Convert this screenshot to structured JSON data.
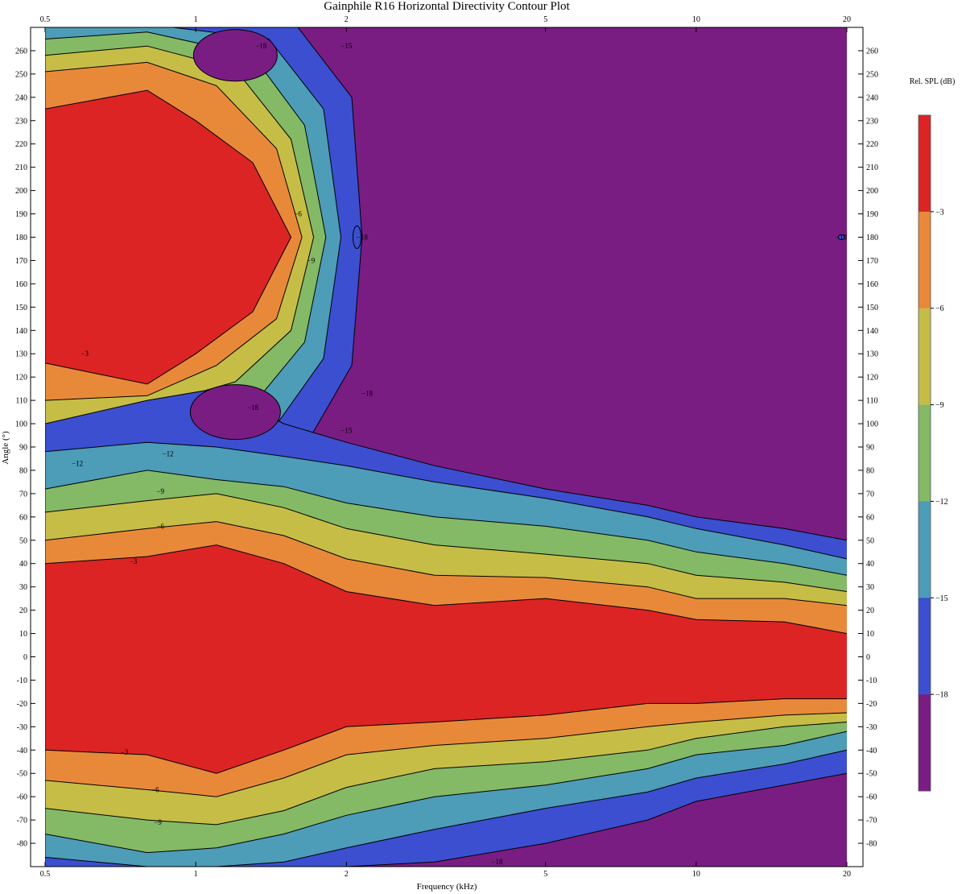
{
  "chart_data": {
    "type": "heatmap",
    "subtype": "contour",
    "title": "Gainphile R16 Horizontal Directivity Contour Plot",
    "xlabel": "Frequency (kHz)",
    "ylabel": "Angle (°)",
    "x_scale": "log",
    "xlim": [
      0.5,
      20
    ],
    "ylim": [
      -90,
      270
    ],
    "x_ticks": [
      "0.5",
      "1",
      "2",
      "5",
      "10",
      "20"
    ],
    "y_ticks": [
      -80,
      -70,
      -60,
      -50,
      -40,
      -30,
      -20,
      -10,
      0,
      10,
      20,
      30,
      40,
      50,
      60,
      70,
      80,
      90,
      100,
      110,
      120,
      130,
      140,
      150,
      160,
      170,
      180,
      190,
      200,
      210,
      220,
      230,
      240,
      250,
      260
    ],
    "colorbar": {
      "title": "Rel. SPL (dB)",
      "levels": [
        "-3",
        "-6",
        "-9",
        "-12",
        "-15",
        "-18"
      ],
      "bands": [
        {
          "range": "> -3",
          "color": "#dc2424"
        },
        {
          "range": "-6 to -3",
          "color": "#e8893a"
        },
        {
          "range": "-9 to -6",
          "color": "#c6bd47"
        },
        {
          "range": "-12 to -9",
          "color": "#84b966"
        },
        {
          "range": "-15 to -12",
          "color": "#4d9cb8"
        },
        {
          "range": "-18 to -15",
          "color": "#3b4fd0"
        },
        {
          "range": "< -18",
          "color": "#7a1d82"
        }
      ]
    },
    "lobes": [
      {
        "name": "front",
        "center_angle": 0,
        "boundaries_upper": [
          {
            "level": -3,
            "f": [
              0.5,
              0.8,
              1.1,
              1.5,
              2.0,
              3.0,
              5.0,
              8.0,
              10,
              15,
              20
            ],
            "a": [
              40,
              43,
              48,
              40,
              28,
              22,
              25,
              20,
              16,
              15,
              10
            ]
          },
          {
            "level": -6,
            "f": [
              0.5,
              0.8,
              1.1,
              1.5,
              2.0,
              3.0,
              5.0,
              8.0,
              10,
              15,
              20
            ],
            "a": [
              50,
              55,
              58,
              52,
              42,
              35,
              34,
              30,
              25,
              25,
              22
            ]
          },
          {
            "level": -9,
            "f": [
              0.5,
              0.8,
              1.1,
              1.5,
              2.0,
              3.0,
              5.0,
              8.0,
              10,
              15,
              20
            ],
            "a": [
              62,
              67,
              70,
              64,
              55,
              48,
              44,
              40,
              35,
              32,
              28
            ]
          },
          {
            "level": -12,
            "f": [
              0.5,
              0.8,
              1.1,
              1.5,
              2.0,
              3.0,
              5.0,
              8.0,
              10,
              15,
              20
            ],
            "a": [
              72,
              80,
              76,
              73,
              66,
              60,
              56,
              50,
              45,
              40,
              35
            ]
          },
          {
            "level": -15,
            "f": [
              0.5,
              0.8,
              1.1,
              1.5,
              2.0,
              3.0,
              5.0,
              8.0,
              10,
              15,
              20
            ],
            "a": [
              88,
              92,
              90,
              86,
              82,
              75,
              68,
              60,
              55,
              48,
              42
            ]
          },
          {
            "level": -18,
            "f": [
              0.5,
              0.8,
              1.1,
              1.5,
              2.0,
              3.0,
              5.0,
              8.0,
              10,
              15,
              20
            ],
            "a": [
              100,
              110,
              115,
              100,
              92,
              82,
              72,
              65,
              60,
              55,
              50
            ]
          }
        ],
        "boundaries_lower": [
          {
            "level": -3,
            "f": [
              0.5,
              0.8,
              1.1,
              1.5,
              2.0,
              3.0,
              5.0,
              8.0,
              10,
              15,
              20
            ],
            "a": [
              -40,
              -42,
              -50,
              -40,
              -30,
              -28,
              -25,
              -20,
              -20,
              -18,
              -18
            ]
          },
          {
            "level": -6,
            "f": [
              0.5,
              0.8,
              1.1,
              1.5,
              2.0,
              3.0,
              5.0,
              8.0,
              10,
              15,
              20
            ],
            "a": [
              -53,
              -57,
              -60,
              -52,
              -42,
              -38,
              -35,
              -30,
              -28,
              -25,
              -24
            ]
          },
          {
            "level": -9,
            "f": [
              0.5,
              0.8,
              1.1,
              1.5,
              2.0,
              3.0,
              5.0,
              8.0,
              10,
              15,
              20
            ],
            "a": [
              -65,
              -70,
              -72,
              -66,
              -56,
              -48,
              -45,
              -40,
              -35,
              -30,
              -28
            ]
          },
          {
            "level": -12,
            "f": [
              0.5,
              0.8,
              1.1,
              1.5,
              2.0,
              3.0,
              5.0,
              8.0,
              10,
              15,
              20
            ],
            "a": [
              -76,
              -84,
              -82,
              -76,
              -68,
              -60,
              -55,
              -48,
              -42,
              -38,
              -32
            ]
          },
          {
            "level": -15,
            "f": [
              0.5,
              0.8,
              1.1,
              1.5,
              2.0,
              3.0,
              5.0,
              8.0,
              10,
              15,
              20
            ],
            "a": [
              -86,
              -90,
              -90,
              -88,
              -82,
              -74,
              -65,
              -58,
              -52,
              -46,
              -40
            ]
          },
          {
            "level": -18,
            "f": [
              0.5,
              0.8,
              1.1,
              1.5,
              2.0,
              3.0,
              5.0,
              8.0,
              10,
              15,
              20
            ],
            "a": [
              -90,
              -90,
              -90,
              -90,
              -90,
              -88,
              -80,
              -70,
              -62,
              -55,
              -50
            ]
          }
        ]
      },
      {
        "name": "rear",
        "center_angle": 180,
        "boundaries": [
          {
            "level": -3,
            "f": [
              0.5,
              0.8,
              1.0,
              1.3,
              1.55,
              1.3,
              1.0,
              0.8,
              0.5
            ],
            "a": [
              235,
              243,
              230,
              212,
              180,
              148,
              130,
              117,
              126
            ]
          },
          {
            "level": -6,
            "f": [
              0.5,
              0.8,
              1.1,
              1.45,
              1.63,
              1.45,
              1.1,
              0.8,
              0.5
            ],
            "a": [
              251,
              255,
              245,
              218,
              180,
              145,
              125,
              112,
              110
            ]
          },
          {
            "level": -9,
            "f": [
              0.5,
              0.8,
              1.2,
              1.55,
              1.72,
              1.55,
              1.2,
              0.8,
              0.5
            ],
            "a": [
              258,
              262,
              252,
              222,
              180,
              140,
              118,
              107,
              97
            ]
          },
          {
            "level": -12,
            "f": [
              0.5,
              0.8,
              1.3,
              1.65,
              1.82,
              1.65,
              1.3,
              0.8,
              0.5
            ],
            "a": [
              265,
              268,
              258,
              228,
              180,
              135,
              108,
              95,
              88
            ]
          },
          {
            "level": -15,
            "f": [
              0.5,
              0.9,
              1.4,
              1.8,
              1.95,
              1.8,
              1.4,
              0.9,
              0.5
            ],
            "a": [
              270,
              270,
              265,
              235,
              180,
              128,
              95,
              80,
              70
            ]
          },
          {
            "level": -18,
            "f": [
              0.5,
              1.0,
              1.6,
              2.05,
              2.15,
              2.05,
              1.6,
              1.0,
              0.5
            ],
            "a": [
              270,
              270,
              270,
              240,
              180,
              125,
              85,
              70,
              60
            ]
          }
        ],
        "islands": [
          {
            "level": -18,
            "center_f": 1.2,
            "center_a": 258,
            "note": "upper hole"
          },
          {
            "level": -18,
            "center_f": 1.2,
            "center_a": 105,
            "note": "lower hole"
          },
          {
            "level": -18,
            "center_f": 2.1,
            "center_a": 180,
            "note": "small"
          },
          {
            "level": -18,
            "center_f": 19.5,
            "center_a": 180,
            "note": "tiny"
          }
        ]
      }
    ],
    "contour_labels": [
      {
        "text": "−3",
        "f": 0.6,
        "a": 130
      },
      {
        "text": "−6",
        "f": 1.6,
        "a": 190
      },
      {
        "text": "−9",
        "f": 1.7,
        "a": 170
      },
      {
        "text": "−12",
        "f": 0.88,
        "a": 87
      },
      {
        "text": "−18",
        "f": 1.3,
        "a": 107
      },
      {
        "text": "−18",
        "f": 1.35,
        "a": 262
      },
      {
        "text": "−15",
        "f": 2.0,
        "a": 262
      },
      {
        "text": "−18",
        "f": 2.15,
        "a": 180
      },
      {
        "text": "−18",
        "f": 2.2,
        "a": 113
      },
      {
        "text": "−15",
        "f": 2.0,
        "a": 97
      },
      {
        "text": "−18",
        "f": 19.5,
        "a": 180
      },
      {
        "text": "−9",
        "f": 0.85,
        "a": 71
      },
      {
        "text": "−6",
        "f": 0.85,
        "a": 56
      },
      {
        "text": "−3",
        "f": 0.75,
        "a": 41
      },
      {
        "text": "−3",
        "f": 0.72,
        "a": -41
      },
      {
        "text": "−6",
        "f": 0.83,
        "a": -57
      },
      {
        "text": "−9",
        "f": 0.84,
        "a": -71
      },
      {
        "text": "−12",
        "f": 0.58,
        "a": 83
      },
      {
        "text": "−18",
        "f": 4.0,
        "a": -88
      }
    ]
  }
}
